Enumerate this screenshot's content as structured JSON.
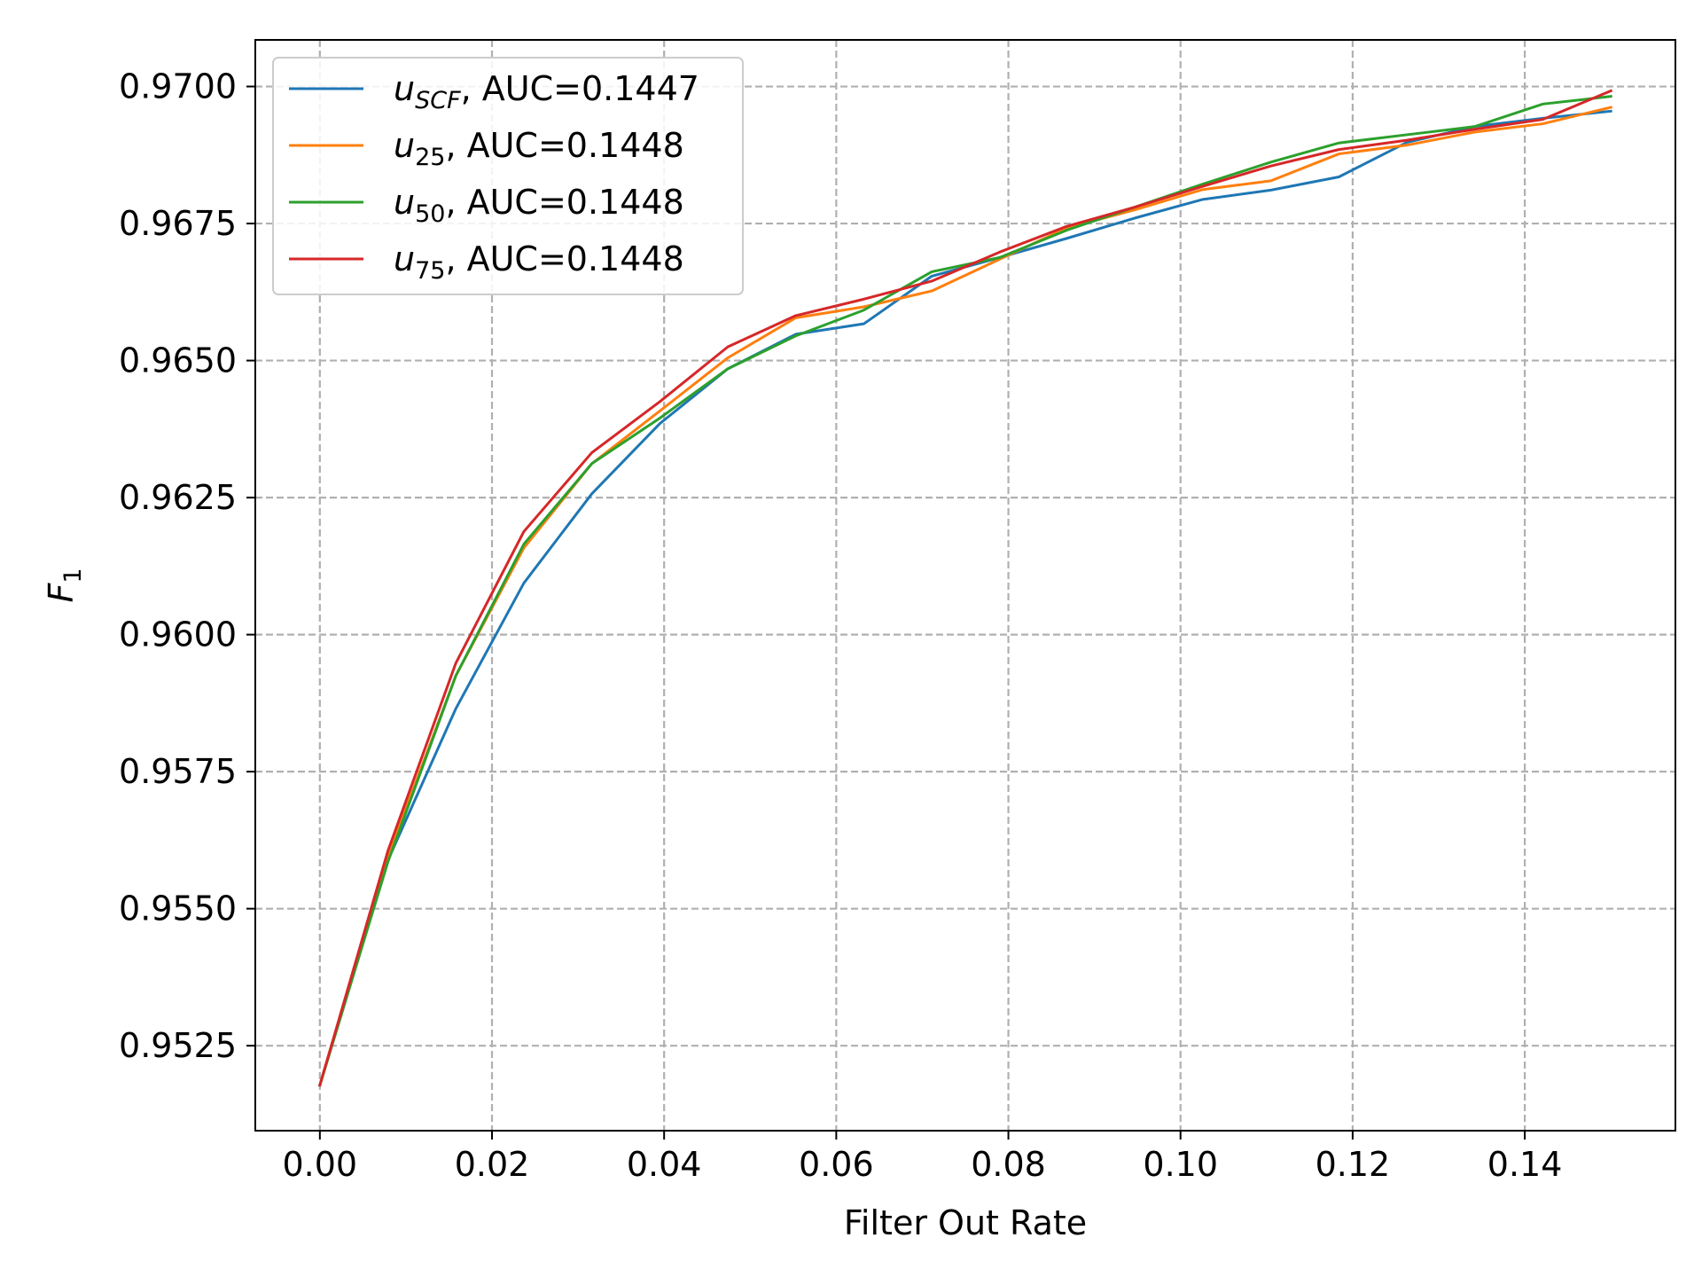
{
  "chart_data": {
    "type": "line",
    "xlabel": "Filter Out Rate",
    "ylabel_base": "F",
    "ylabel_sub": "1",
    "xlim": [
      -0.0075,
      0.1575
    ],
    "ylim": [
      0.95095,
      0.97085
    ],
    "xticks": [
      0.0,
      0.02,
      0.04,
      0.06,
      0.08,
      0.1,
      0.12,
      0.14
    ],
    "xtick_labels": [
      "0.00",
      "0.02",
      "0.04",
      "0.06",
      "0.08",
      "0.10",
      "0.12",
      "0.14"
    ],
    "yticks": [
      0.9525,
      0.955,
      0.9575,
      0.96,
      0.9625,
      0.965,
      0.9675,
      0.97
    ],
    "ytick_labels": [
      "0.9525",
      "0.9550",
      "0.9575",
      "0.9600",
      "0.9625",
      "0.9650",
      "0.9675",
      "0.9700"
    ],
    "grid": true,
    "legend_position": "upper-left",
    "x": [
      0.0,
      0.0079,
      0.0158,
      0.0237,
      0.0316,
      0.0395,
      0.0474,
      0.0553,
      0.0632,
      0.0711,
      0.079,
      0.0868,
      0.0947,
      0.1026,
      0.1105,
      0.1184,
      0.1263,
      0.1342,
      0.1421,
      0.15
    ],
    "series": [
      {
        "name_base": "u",
        "name_sub": "SCF",
        "auc_text": ", AUC=0.1447",
        "color": "#1f77b4",
        "values": [
          0.95178,
          0.95588,
          0.95865,
          0.96094,
          0.96257,
          0.96385,
          0.96485,
          0.96548,
          0.96567,
          0.96654,
          0.96688,
          0.96723,
          0.9676,
          0.96794,
          0.96811,
          0.96835,
          0.96898,
          0.96927,
          0.96942,
          0.96955
        ]
      },
      {
        "name_base": "u",
        "name_sub": "25",
        "auc_text": ", AUC=0.1448",
        "color": "#ff7f0e",
        "values": [
          0.95178,
          0.95595,
          0.95925,
          0.96158,
          0.96312,
          0.96408,
          0.96505,
          0.96578,
          0.96598,
          0.96627,
          0.96685,
          0.96742,
          0.96775,
          0.96812,
          0.96828,
          0.96877,
          0.96893,
          0.96917,
          0.96932,
          0.96962
        ]
      },
      {
        "name_base": "u",
        "name_sub": "50",
        "auc_text": ", AUC=0.1448",
        "color": "#2ca02c",
        "values": [
          0.95178,
          0.95585,
          0.95925,
          0.96165,
          0.96312,
          0.96395,
          0.96485,
          0.96545,
          0.96592,
          0.96662,
          0.96688,
          0.96738,
          0.9678,
          0.96822,
          0.96862,
          0.96897,
          0.96912,
          0.96927,
          0.96968,
          0.96982
        ]
      },
      {
        "name_base": "u",
        "name_sub": "75",
        "auc_text": ", AUC=0.1448",
        "color": "#d62728",
        "values": [
          0.95178,
          0.95605,
          0.95948,
          0.96188,
          0.96332,
          0.96425,
          0.96525,
          0.96582,
          0.96612,
          0.96645,
          0.96698,
          0.96745,
          0.9678,
          0.96818,
          0.96855,
          0.96885,
          0.96902,
          0.96922,
          0.9694,
          0.96992
        ]
      }
    ]
  }
}
